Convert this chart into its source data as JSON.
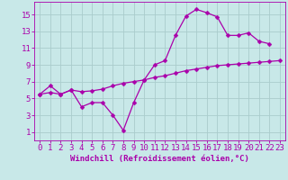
{
  "xlabel": "Windchill (Refroidissement éolien,°C)",
  "background_color": "#c8e8e8",
  "grid_color": "#aacccc",
  "line_color": "#aa00aa",
  "curve1_x": [
    0,
    1,
    2,
    3,
    4,
    5,
    6,
    7,
    8,
    9,
    10,
    11,
    12,
    13,
    14,
    15,
    16,
    17,
    18,
    19,
    20,
    21,
    22
  ],
  "curve1_y": [
    5.5,
    6.5,
    5.5,
    6.0,
    4.0,
    4.5,
    4.5,
    3.0,
    1.2,
    4.5,
    7.2,
    9.0,
    9.5,
    12.5,
    14.8,
    15.6,
    15.2,
    14.7,
    12.5,
    12.5,
    12.8,
    11.8,
    11.5
  ],
  "curve2_x": [
    0,
    1,
    2,
    3,
    4,
    5,
    6,
    7,
    8,
    9,
    10,
    11,
    12,
    13,
    14,
    15,
    16,
    17,
    18,
    19,
    20,
    21,
    22,
    23
  ],
  "curve2_y": [
    5.5,
    5.7,
    5.5,
    6.0,
    5.8,
    5.9,
    6.1,
    6.5,
    6.8,
    7.0,
    7.2,
    7.5,
    7.7,
    8.0,
    8.3,
    8.5,
    8.7,
    8.9,
    9.0,
    9.1,
    9.2,
    9.3,
    9.4,
    9.5
  ],
  "xlim": [
    -0.5,
    23.5
  ],
  "ylim": [
    0,
    16.5
  ],
  "yticks": [
    1,
    3,
    5,
    7,
    9,
    11,
    13,
    15
  ],
  "xticks": [
    0,
    1,
    2,
    3,
    4,
    5,
    6,
    7,
    8,
    9,
    10,
    11,
    12,
    13,
    14,
    15,
    16,
    17,
    18,
    19,
    20,
    21,
    22,
    23
  ],
  "tick_fontsize": 6.5,
  "xlabel_fontsize": 6.5,
  "marker_size": 2.5,
  "line_width": 0.9
}
